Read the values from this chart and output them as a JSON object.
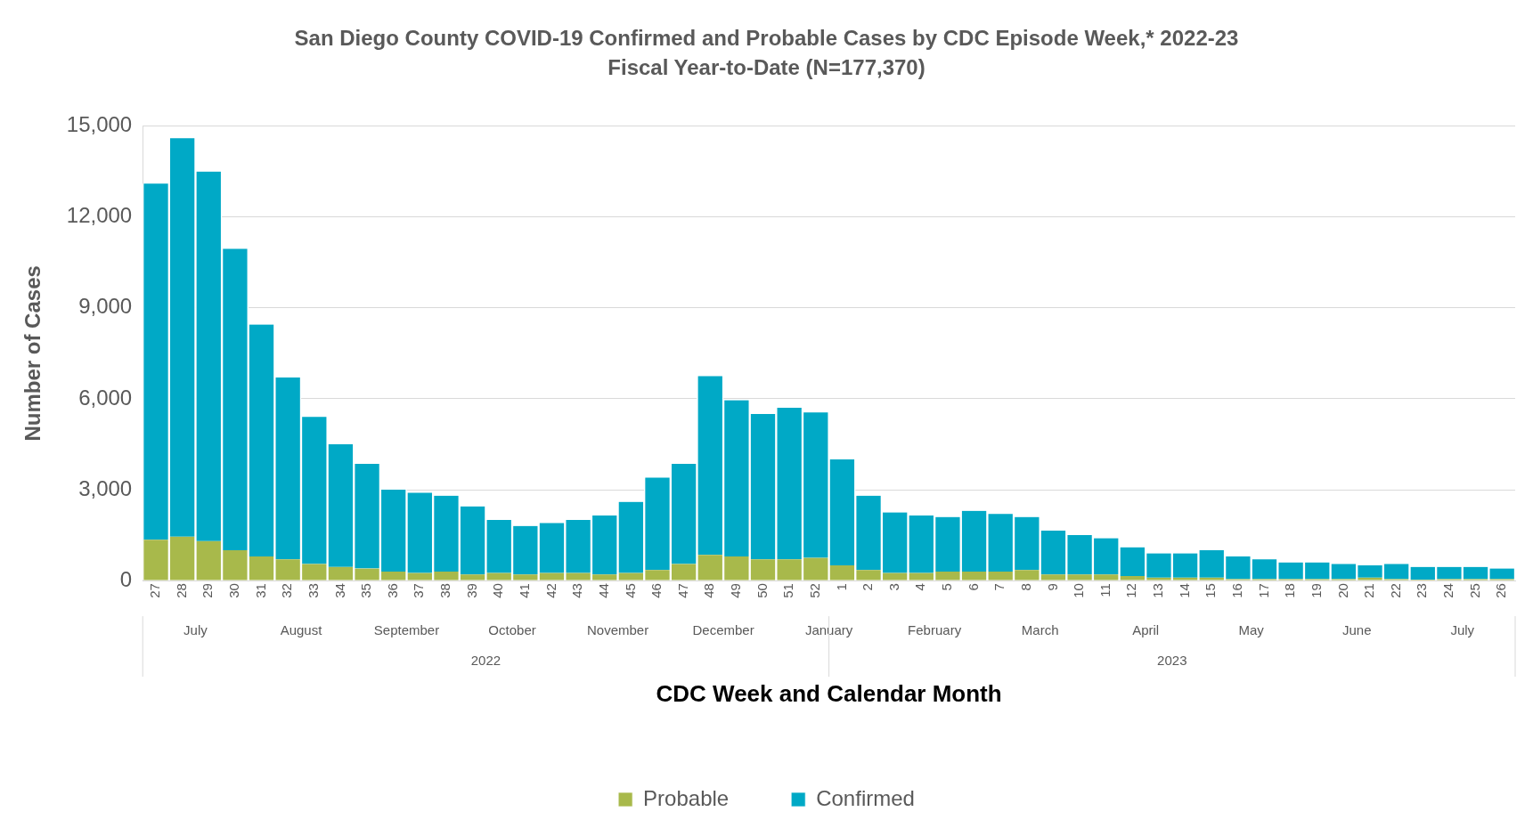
{
  "chart_data": {
    "type": "bar",
    "title": "San Diego County COVID-19 Confirmed and Probable Cases by CDC Episode Week,* 2022-23",
    "subtitle": "Fiscal Year-to-Date (N=177,370)",
    "xlabel": "CDC Week and Calendar Month",
    "ylabel": "Number of Cases",
    "categories": [
      "27",
      "28",
      "29",
      "30",
      "31",
      "32",
      "33",
      "34",
      "35",
      "36",
      "37",
      "38",
      "39",
      "40",
      "41",
      "42",
      "43",
      "44",
      "45",
      "46",
      "47",
      "48",
      "49",
      "50",
      "51",
      "52",
      "1",
      "2",
      "3",
      "4",
      "5",
      "6",
      "7",
      "8",
      "9",
      "10",
      "11",
      "12",
      "13",
      "14",
      "15",
      "16",
      "17",
      "18",
      "19",
      "20",
      "21",
      "22",
      "23",
      "24",
      "25",
      "26"
    ],
    "stacked": true,
    "series": [
      {
        "name": "Probable",
        "color": "#a8b94b",
        "values": [
          1350,
          1450,
          1300,
          1000,
          800,
          700,
          550,
          450,
          400,
          300,
          250,
          300,
          200,
          250,
          200,
          250,
          250,
          200,
          250,
          350,
          550,
          850,
          800,
          700,
          700,
          750,
          500,
          350,
          250,
          250,
          300,
          300,
          300,
          350,
          200,
          200,
          200,
          150,
          100,
          100,
          100,
          50,
          50,
          50,
          50,
          50,
          100,
          50,
          30,
          50,
          50,
          50
        ]
      },
      {
        "name": "Confirmed",
        "color": "#00a9c6",
        "values": [
          11750,
          13150,
          12200,
          9950,
          7650,
          6000,
          4850,
          4050,
          3450,
          2700,
          2650,
          2500,
          2250,
          1750,
          1600,
          1650,
          1750,
          1950,
          2350,
          3050,
          3300,
          5900,
          5150,
          4800,
          5000,
          4800,
          3500,
          2450,
          2000,
          1900,
          1800,
          2000,
          1900,
          1750,
          1450,
          1300,
          1200,
          950,
          800,
          800,
          900,
          750,
          650,
          550,
          550,
          500,
          400,
          500,
          420,
          400,
          400,
          350
        ]
      }
    ],
    "ylim": [
      0,
      15000
    ],
    "yticks": [
      0,
      {
        "value": 3000,
        "label": "3,000"
      },
      {
        "value": 6000,
        "label": "6,000"
      },
      {
        "value": 9000,
        "label": "9,000"
      },
      {
        "value": 12000,
        "label": "12,000"
      },
      {
        "value": 15000,
        "label": "15,000"
      }
    ],
    "grid": "y",
    "legend": "bottom",
    "annotations": [
      "July",
      "August",
      "September",
      "October",
      "November",
      "December",
      "January",
      "February",
      "March",
      "April",
      "May",
      "June",
      "July",
      "2022",
      "2023"
    ]
  }
}
